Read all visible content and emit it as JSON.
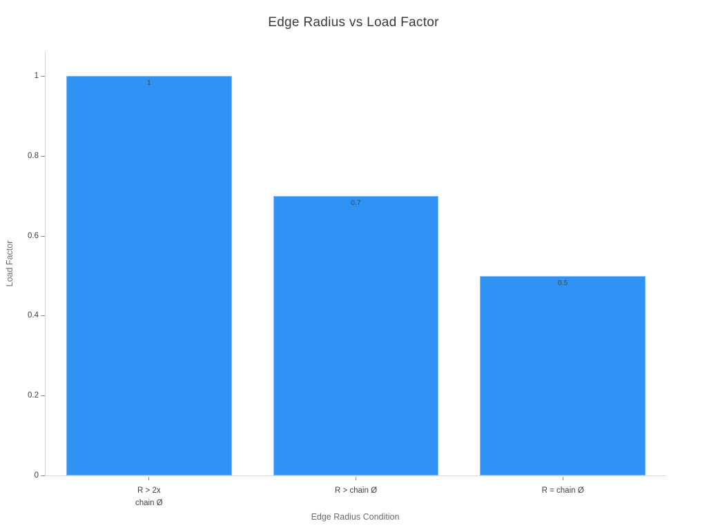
{
  "page": {
    "background": "#ffffff"
  },
  "chart_data": {
    "type": "bar",
    "title": "Edge Radius vs Load Factor",
    "xlabel": "Edge Radius Condition",
    "ylabel": "Load Factor",
    "categories": [
      "R > 2x\nchain Ø",
      "R > chain Ø",
      "R = chain Ø"
    ],
    "values": [
      1,
      0.7,
      0.5
    ],
    "value_labels": [
      "1",
      "0.7",
      "0.5"
    ],
    "yticks": [
      0,
      0.2,
      0.4,
      0.6,
      0.8,
      1
    ],
    "ytick_labels": [
      "0",
      "0.2",
      "0.4",
      "0.6",
      "0.8",
      "1"
    ],
    "ylim": [
      0,
      1.0605
    ],
    "grid": false,
    "legend_position": "none",
    "bar_color": "#2F93F5",
    "bar_width_fraction": 0.8,
    "axis_line_color": "#d6d6d6",
    "tick_mark_color": "#8c8c8c",
    "tick_label_color": "#3c3c3c",
    "axis_title_color": "#6b6b6b",
    "title_color": "#37393b",
    "value_label_color": "#3d454d"
  }
}
